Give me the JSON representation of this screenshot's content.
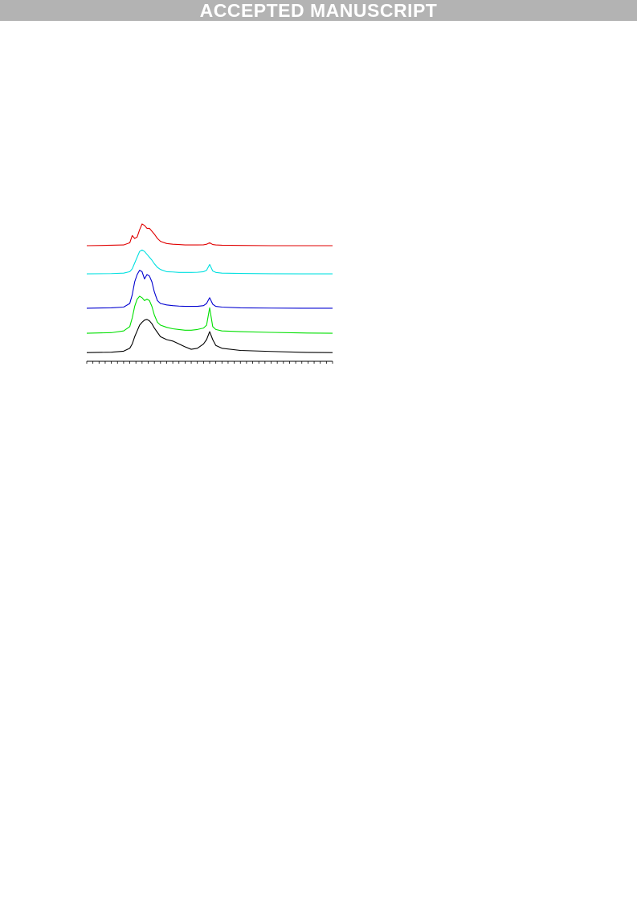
{
  "header": {
    "banner": "ACCEPTED MANUSCRIPT"
  },
  "chart_data": {
    "type": "line",
    "x": [
      0,
      4,
      6,
      7,
      7.4,
      7.8,
      8.2,
      8.6,
      9,
      9.4,
      9.8,
      10.2,
      10.6,
      11,
      11.5,
      12,
      13,
      14,
      15,
      16,
      17,
      18,
      19,
      19.5,
      20,
      20.5,
      21,
      22,
      25,
      30,
      35,
      40
    ],
    "series": [
      {
        "color": "#e00000",
        "values": [
          80,
          80.3,
          80.5,
          82,
          87,
          85,
          86,
          91,
          95,
          94,
          92,
          92,
          90,
          88,
          85,
          83,
          81.5,
          81,
          80.8,
          80.5,
          80.5,
          80.5,
          80.6,
          81,
          82,
          80.8,
          80.5,
          80.3,
          80.2,
          80,
          80,
          80
        ]
      },
      {
        "color": "#00e0e0",
        "values": [
          60.5,
          60.7,
          61,
          62,
          64,
          68,
          72,
          76,
          77,
          76,
          74,
          72,
          70,
          67.5,
          65,
          63.5,
          62,
          61.8,
          61.5,
          61.5,
          61.5,
          61.6,
          62,
          63,
          67,
          62.5,
          61.5,
          61,
          60.8,
          60.6,
          60.5,
          60.5
        ]
      },
      {
        "color": "#0000d0",
        "values": [
          36.7,
          37,
          37.5,
          40,
          46,
          55,
          60,
          63,
          62,
          57,
          60,
          59,
          55,
          48,
          42,
          40,
          39,
          38.5,
          38.2,
          38,
          38,
          38,
          38.5,
          40,
          44,
          39.5,
          38,
          37.5,
          37,
          36.8,
          36.7,
          36.7
        ]
      },
      {
        "color": "#00e000",
        "values": [
          19.4,
          19.8,
          21,
          24,
          30,
          38,
          43,
          45,
          44,
          42,
          43,
          42,
          38,
          32,
          27,
          25,
          23.5,
          22.5,
          22,
          21.5,
          21.5,
          22,
          23,
          25,
          37,
          24,
          22,
          21,
          20.5,
          20,
          19.6,
          19.4
        ]
      },
      {
        "color": "#000000",
        "values": [
          6,
          6.3,
          7,
          9,
          12,
          17,
          21,
          25,
          27,
          28.5,
          29,
          28,
          26,
          23,
          20,
          17,
          15,
          14,
          12,
          10,
          8.3,
          9,
          12,
          15,
          20.5,
          15,
          11,
          9,
          7.5,
          6.8,
          6.2,
          6
        ]
      }
    ],
    "xlim": [
      0,
      40
    ],
    "xticks": [
      0,
      1,
      2,
      3,
      4,
      5,
      6,
      7,
      8,
      9,
      10,
      11,
      12,
      13,
      14,
      15,
      16,
      17,
      18,
      19,
      20,
      21,
      22,
      23,
      24,
      25,
      26,
      27,
      28,
      29,
      30,
      31,
      32,
      33,
      34,
      35,
      36,
      37,
      38,
      39,
      40
    ],
    "ylim": [
      0,
      100
    ],
    "grid": false
  }
}
